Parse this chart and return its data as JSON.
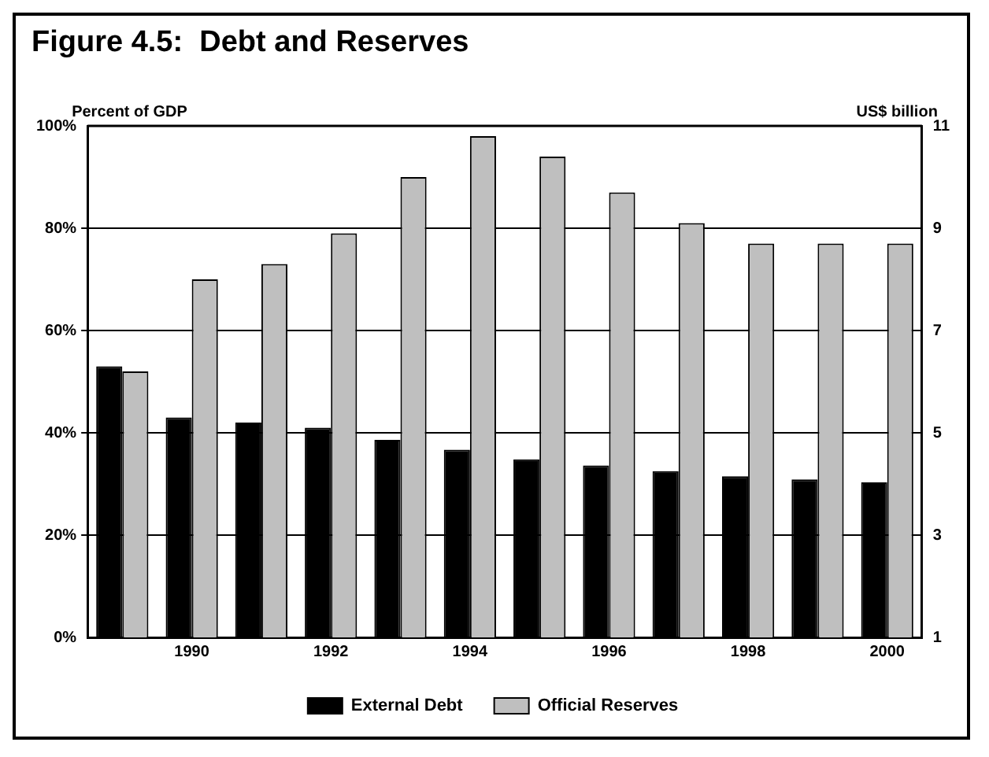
{
  "chart_data": {
    "type": "bar",
    "title": "Figure 4.5:  Debt and Reserves",
    "ylabel": "Percent of GDP",
    "y2label": "US$ billion",
    "categories": [
      null,
      "1990",
      null,
      "1992",
      null,
      "1994",
      null,
      "1996",
      null,
      "1998",
      null,
      "2000"
    ],
    "series": [
      {
        "name": "External Debt",
        "color": "#000000",
        "values": [
          53,
          43,
          42,
          41,
          38.6,
          36.7,
          34.8,
          33.6,
          32.5,
          31.5,
          30.9,
          30.3
        ]
      },
      {
        "name": "Official Reserves",
        "color": "#bfbfbf",
        "axis": "y2",
        "values": [
          6.2,
          8.0,
          8.3,
          8.9,
          10.0,
          10.8,
          10.4,
          9.7,
          9.1,
          8.7,
          8.7,
          8.7
        ]
      }
    ],
    "ylim": [
      0,
      100
    ],
    "yticks": [
      {
        "value": 0,
        "label": "0%"
      },
      {
        "value": 20,
        "label": "20%"
      },
      {
        "value": 40,
        "label": "40%"
      },
      {
        "value": 60,
        "label": "60%"
      },
      {
        "value": 80,
        "label": "80%"
      },
      {
        "value": 100,
        "label": "100%"
      }
    ],
    "y2lim": [
      1,
      11
    ],
    "y2ticks": [
      1,
      3,
      5,
      7,
      9,
      11
    ],
    "grid": "y",
    "legend": "bottom"
  }
}
